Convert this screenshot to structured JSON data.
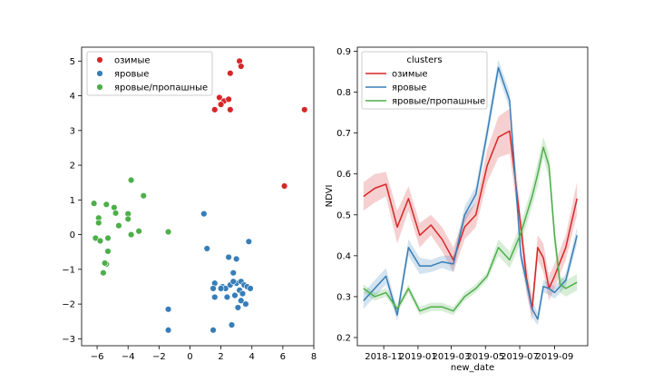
{
  "chart_data": [
    {
      "type": "scatter",
      "xlabel": "",
      "ylabel": "",
      "xlim": [
        -7,
        8
      ],
      "ylim": [
        -3.2,
        5.4
      ],
      "xticks": [
        -6,
        -4,
        -2,
        0,
        2,
        4,
        6,
        8
      ],
      "yticks": [
        -3,
        -2,
        -1,
        0,
        1,
        2,
        3,
        4,
        5
      ],
      "legend_position": "upper-left",
      "series": [
        {
          "name": "озимые",
          "color": "#d62728",
          "points": [
            [
              3.2,
              5.0
            ],
            [
              3.3,
              4.85
            ],
            [
              2.6,
              4.65
            ],
            [
              1.9,
              3.95
            ],
            [
              2.2,
              3.85
            ],
            [
              2.5,
              3.9
            ],
            [
              2.0,
              3.75
            ],
            [
              1.6,
              3.6
            ],
            [
              2.6,
              3.6
            ],
            [
              6.1,
              1.4
            ],
            [
              7.4,
              3.6
            ]
          ]
        },
        {
          "name": "яровые",
          "color": "#377eb8",
          "points": [
            [
              0.9,
              0.6
            ],
            [
              1.1,
              -0.4
            ],
            [
              3.8,
              -0.2
            ],
            [
              -1.4,
              -2.15
            ],
            [
              -1.4,
              -2.75
            ],
            [
              1.5,
              -2.75
            ],
            [
              2.5,
              -0.65
            ],
            [
              3.0,
              -0.7
            ],
            [
              2.8,
              -1.1
            ],
            [
              1.6,
              -1.4
            ],
            [
              2.1,
              -1.5
            ],
            [
              2.3,
              -1.55
            ],
            [
              2.6,
              -1.45
            ],
            [
              3.0,
              -1.4
            ],
            [
              3.3,
              -1.35
            ],
            [
              3.5,
              -1.45
            ],
            [
              3.7,
              -1.5
            ],
            [
              3.9,
              -1.55
            ],
            [
              3.2,
              -1.6
            ],
            [
              3.4,
              -1.7
            ],
            [
              2.9,
              -1.75
            ],
            [
              2.4,
              -1.8
            ],
            [
              1.6,
              -1.8
            ],
            [
              3.3,
              -1.9
            ],
            [
              3.6,
              -2.0
            ],
            [
              3.1,
              -2.1
            ],
            [
              2.7,
              -2.6
            ],
            [
              2.0,
              -1.55
            ],
            [
              2.8,
              -1.35
            ],
            [
              1.5,
              -1.55
            ]
          ]
        },
        {
          "name": "яровые/пропашные",
          "color": "#4daf4a",
          "points": [
            [
              -3.8,
              1.57
            ],
            [
              -3.0,
              1.12
            ],
            [
              -6.2,
              0.9
            ],
            [
              -5.4,
              0.87
            ],
            [
              -4.9,
              0.78
            ],
            [
              -5.9,
              0.48
            ],
            [
              -4.8,
              0.62
            ],
            [
              -4.0,
              0.6
            ],
            [
              -4.0,
              0.45
            ],
            [
              -5.9,
              0.34
            ],
            [
              -4.6,
              0.26
            ],
            [
              -3.3,
              0.1
            ],
            [
              -3.8,
              0.0
            ],
            [
              -1.4,
              0.08
            ],
            [
              -6.1,
              -0.1
            ],
            [
              -5.8,
              -0.18
            ],
            [
              -5.3,
              -0.1
            ],
            [
              -5.3,
              -0.48
            ],
            [
              -5.6,
              -1.1
            ],
            [
              -5.4,
              -0.85
            ],
            [
              -5.5,
              -0.82
            ]
          ]
        }
      ]
    },
    {
      "type": "line",
      "xlabel": "new_date",
      "ylabel": "NDVI",
      "ylim": [
        0.18,
        0.91
      ],
      "xlim": [
        "2018-09-15",
        "2019-10-30"
      ],
      "yticks": [
        0.2,
        0.3,
        0.4,
        0.5,
        0.6,
        0.7,
        0.8,
        0.9
      ],
      "xticks": [
        {
          "date": "2018-11-01",
          "label": "2018-11"
        },
        {
          "date": "2019-01-01",
          "label": "2019-01"
        },
        {
          "date": "2019-03-01",
          "label": "2019-03"
        },
        {
          "date": "2019-05-01",
          "label": "2019-05"
        },
        {
          "date": "2019-07-01",
          "label": "2019-07"
        },
        {
          "date": "2019-09-01",
          "label": "2019-09"
        }
      ],
      "legend_title": "clusters",
      "legend_position": "upper-left",
      "x": [
        "2018-09-26",
        "2018-10-16",
        "2018-11-05",
        "2018-11-25",
        "2018-12-15",
        "2019-01-04",
        "2019-01-24",
        "2019-02-13",
        "2019-03-05",
        "2019-03-25",
        "2019-04-14",
        "2019-05-04",
        "2019-05-24",
        "2019-06-13",
        "2019-07-03",
        "2019-07-23",
        "2019-08-12",
        "2019-09-01",
        "2019-09-21",
        "2019-10-11"
      ],
      "series": [
        {
          "name": "озимые",
          "color": "#d62728",
          "values": [
            0.545,
            0.565,
            0.575,
            0.47,
            0.54,
            0.45,
            0.475,
            0.44,
            0.39,
            0.47,
            0.5,
            0.62,
            0.69,
            0.705,
            0.47,
            0.345,
            0.27,
            0.42,
            0.395,
            0.32,
            0.35,
            0.42,
            0.54
          ],
          "lower": [
            0.51,
            0.53,
            0.545,
            0.43,
            0.51,
            0.42,
            0.45,
            0.41,
            0.36,
            0.44,
            0.47,
            0.58,
            0.64,
            0.65,
            0.44,
            0.31,
            0.24,
            0.39,
            0.36,
            0.29,
            0.32,
            0.39,
            0.5
          ],
          "upper": [
            0.58,
            0.6,
            0.605,
            0.51,
            0.57,
            0.48,
            0.5,
            0.47,
            0.42,
            0.5,
            0.53,
            0.66,
            0.74,
            0.76,
            0.5,
            0.38,
            0.3,
            0.45,
            0.43,
            0.35,
            0.38,
            0.45,
            0.58
          ],
          "x": [
            "2018-09-26",
            "2018-10-16",
            "2018-11-05",
            "2018-11-25",
            "2018-12-15",
            "2019-01-04",
            "2019-01-24",
            "2019-02-13",
            "2019-03-05",
            "2019-03-25",
            "2019-04-14",
            "2019-05-04",
            "2019-05-24",
            "2019-06-13",
            "2019-07-03",
            "2019-07-13",
            "2019-07-23",
            "2019-08-02",
            "2019-08-12",
            "2019-08-22",
            "2019-09-01",
            "2019-09-21",
            "2019-10-11"
          ]
        },
        {
          "name": "яровые",
          "color": "#377eb8",
          "values": [
            0.29,
            0.32,
            0.35,
            0.255,
            0.42,
            0.375,
            0.375,
            0.385,
            0.38,
            0.5,
            0.55,
            0.7,
            0.86,
            0.78,
            0.4,
            0.27,
            0.245,
            0.325,
            0.32,
            0.31,
            0.34,
            0.45
          ],
          "lower": [
            0.27,
            0.3,
            0.33,
            0.24,
            0.4,
            0.355,
            0.36,
            0.37,
            0.36,
            0.48,
            0.53,
            0.68,
            0.84,
            0.76,
            0.38,
            0.25,
            0.23,
            0.31,
            0.305,
            0.295,
            0.325,
            0.43
          ],
          "upper": [
            0.31,
            0.34,
            0.37,
            0.27,
            0.44,
            0.395,
            0.39,
            0.4,
            0.4,
            0.52,
            0.57,
            0.72,
            0.88,
            0.8,
            0.42,
            0.29,
            0.26,
            0.34,
            0.335,
            0.325,
            0.355,
            0.47
          ],
          "x": [
            "2018-09-26",
            "2018-10-16",
            "2018-11-05",
            "2018-11-25",
            "2018-12-15",
            "2019-01-04",
            "2019-01-24",
            "2019-02-13",
            "2019-03-05",
            "2019-03-25",
            "2019-04-14",
            "2019-05-04",
            "2019-05-24",
            "2019-06-13",
            "2019-07-03",
            "2019-07-23",
            "2019-08-02",
            "2019-08-12",
            "2019-08-22",
            "2019-09-01",
            "2019-09-21",
            "2019-10-11"
          ]
        },
        {
          "name": "яровые/пропашные",
          "color": "#4daf4a",
          "values": [
            0.32,
            0.3,
            0.31,
            0.27,
            0.32,
            0.265,
            0.275,
            0.275,
            0.265,
            0.3,
            0.32,
            0.35,
            0.42,
            0.39,
            0.455,
            0.545,
            0.6,
            0.665,
            0.62,
            0.45,
            0.33,
            0.32,
            0.335
          ],
          "lower": [
            0.31,
            0.29,
            0.3,
            0.26,
            0.31,
            0.255,
            0.265,
            0.265,
            0.255,
            0.29,
            0.31,
            0.34,
            0.4,
            0.37,
            0.43,
            0.52,
            0.57,
            0.64,
            0.59,
            0.42,
            0.31,
            0.3,
            0.315
          ],
          "upper": [
            0.33,
            0.31,
            0.32,
            0.28,
            0.33,
            0.275,
            0.285,
            0.285,
            0.275,
            0.31,
            0.33,
            0.36,
            0.44,
            0.41,
            0.48,
            0.57,
            0.63,
            0.69,
            0.65,
            0.48,
            0.35,
            0.34,
            0.355
          ],
          "x": [
            "2018-09-26",
            "2018-10-16",
            "2018-11-05",
            "2018-11-25",
            "2018-12-15",
            "2019-01-04",
            "2019-01-24",
            "2019-02-13",
            "2019-03-05",
            "2019-03-25",
            "2019-04-14",
            "2019-05-04",
            "2019-05-24",
            "2019-06-13",
            "2019-07-03",
            "2019-07-23",
            "2019-08-02",
            "2019-08-12",
            "2019-08-22",
            "2019-09-01",
            "2019-09-11",
            "2019-09-21",
            "2019-10-11"
          ]
        }
      ]
    }
  ]
}
